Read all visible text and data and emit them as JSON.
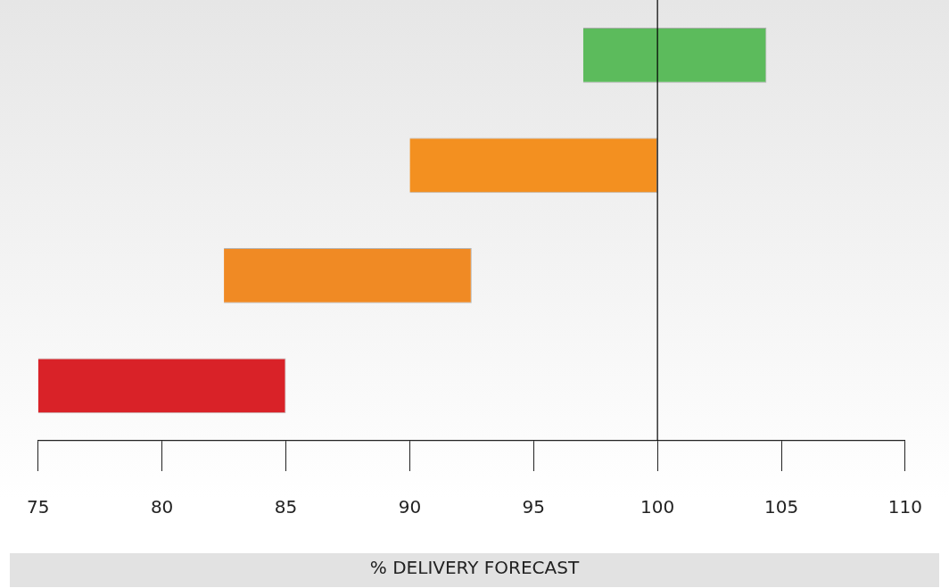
{
  "chart_data": {
    "type": "bar",
    "orientation": "horizontal",
    "xlabel": "% DELIVERY FORECAST",
    "categories": [
      null,
      null,
      null,
      null
    ],
    "base": [
      97,
      90,
      82.5,
      75
    ],
    "values": [
      7.4,
      10,
      10,
      10
    ],
    "colors": [
      "#5cbb5c",
      "#f39020",
      "#f08a24",
      "#d92228"
    ],
    "xlim": [
      75,
      110
    ],
    "xticks": [
      75,
      80,
      85,
      90,
      95,
      100,
      105,
      110
    ],
    "ref_lines": [
      {
        "axis": "x",
        "value": 100,
        "color": "#000000"
      }
    ],
    "grid": false,
    "legend": false
  }
}
